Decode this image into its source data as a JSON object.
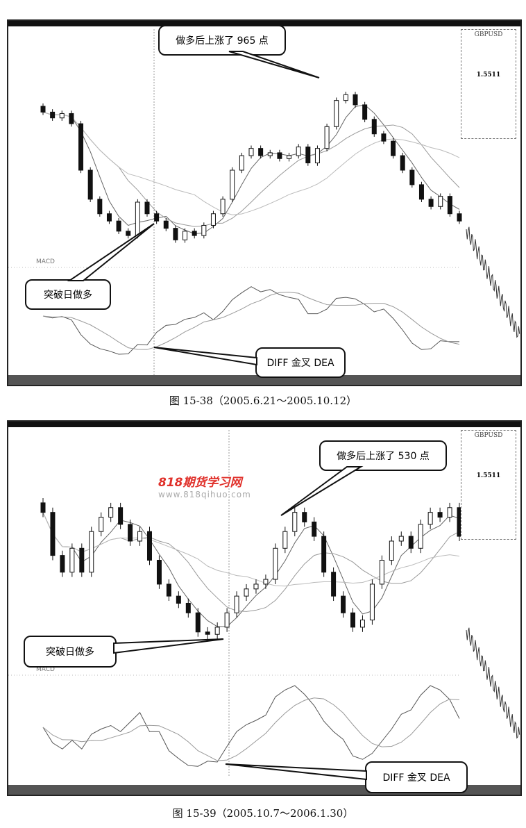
{
  "figures": [
    {
      "caption": "图 15-38（2005.6.21～2005.10.12）",
      "callouts": {
        "rise": "做多后上涨了 965 点",
        "breakout": "突破日做多",
        "cross": "DIFF 金叉 DEA"
      },
      "panel": {
        "symbol": "GBPUSD",
        "price": "1.5511"
      }
    },
    {
      "caption": "图 15-39（2005.10.7～2006.1.30）",
      "callouts": {
        "rise": "做多后上涨了 530 点",
        "breakout": "突破日做多",
        "cross": "DIFF 金叉 DEA"
      },
      "panel": {
        "symbol": "GBPUSD",
        "price": "1.5511"
      }
    }
  ],
  "watermark": {
    "title": "818期货学习网",
    "url": "www.818qihuo.com"
  },
  "colors": {
    "candle": "#111111",
    "watermark": "#e0302a"
  },
  "chart_data": [
    {
      "type": "candlestick",
      "indicator": "MACD",
      "closes": [
        1.83,
        1.826,
        1.829,
        1.822,
        1.79,
        1.77,
        1.76,
        1.755,
        1.748,
        1.745,
        1.768,
        1.76,
        1.755,
        1.75,
        1.742,
        1.748,
        1.745,
        1.752,
        1.76,
        1.77,
        1.79,
        1.8,
        1.805,
        1.8,
        1.802,
        1.798,
        1.8,
        1.806,
        1.795,
        1.805,
        1.82,
        1.838,
        1.842,
        1.835,
        1.825,
        1.815,
        1.81,
        1.8,
        1.79,
        1.78,
        1.77,
        1.765,
        1.772,
        1.76,
        1.755
      ],
      "ylim": [
        1.735,
        1.845
      ]
    },
    {
      "type": "candlestick",
      "indicator": "MACD",
      "closes": [
        1.77,
        1.752,
        1.745,
        1.755,
        1.745,
        1.762,
        1.768,
        1.772,
        1.765,
        1.758,
        1.762,
        1.75,
        1.74,
        1.735,
        1.732,
        1.728,
        1.72,
        1.719,
        1.722,
        1.728,
        1.735,
        1.738,
        1.74,
        1.742,
        1.755,
        1.762,
        1.77,
        1.766,
        1.76,
        1.745,
        1.735,
        1.728,
        1.722,
        1.725,
        1.74,
        1.75,
        1.758,
        1.76,
        1.755,
        1.765,
        1.77,
        1.768,
        1.772,
        1.76
      ],
      "ylim": [
        1.715,
        1.776
      ]
    }
  ]
}
